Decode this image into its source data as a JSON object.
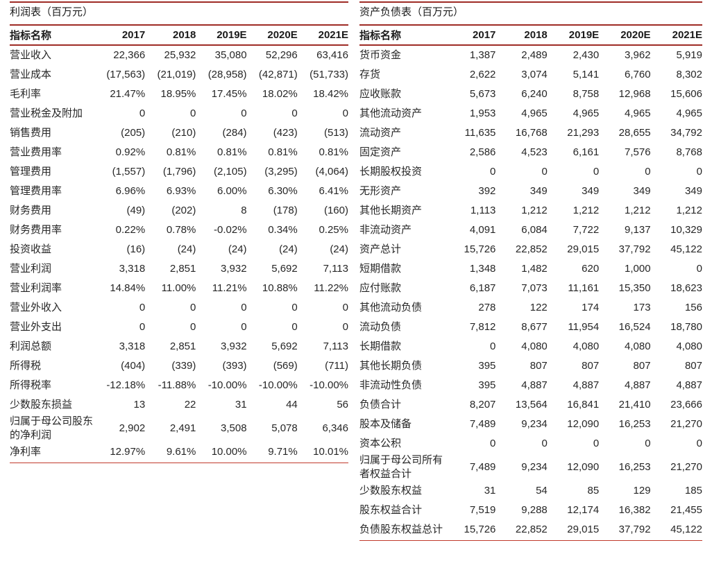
{
  "colors": {
    "rule_heavy": "#9e2b25",
    "rule_bottom": "#c0392b",
    "text": "#262626"
  },
  "tables": [
    {
      "id": "income-statement",
      "title": "利润表（百万元）",
      "columns": [
        "指标名称",
        "2017",
        "2018",
        "2019E",
        "2020E",
        "2021E"
      ],
      "rows": [
        [
          "营业收入",
          "22,366",
          "25,932",
          "35,080",
          "52,296",
          "63,416"
        ],
        [
          "营业成本",
          "(17,563)",
          "(21,019)",
          "(28,958)",
          "(42,871)",
          "(51,733)"
        ],
        [
          "毛利率",
          "21.47%",
          "18.95%",
          "17.45%",
          "18.02%",
          "18.42%"
        ],
        [
          "营业税金及附加",
          "0",
          "0",
          "0",
          "0",
          "0"
        ],
        [
          "销售费用",
          "(205)",
          "(210)",
          "(284)",
          "(423)",
          "(513)"
        ],
        [
          "营业费用率",
          "0.92%",
          "0.81%",
          "0.81%",
          "0.81%",
          "0.81%"
        ],
        [
          "管理费用",
          "(1,557)",
          "(1,796)",
          "(2,105)",
          "(3,295)",
          "(4,064)"
        ],
        [
          "管理费用率",
          "6.96%",
          "6.93%",
          "6.00%",
          "6.30%",
          "6.41%"
        ],
        [
          "财务费用",
          "(49)",
          "(202)",
          "8",
          "(178)",
          "(160)"
        ],
        [
          "财务费用率",
          "0.22%",
          "0.78%",
          "-0.02%",
          "0.34%",
          "0.25%"
        ],
        [
          "投资收益",
          "(16)",
          "(24)",
          "(24)",
          "(24)",
          "(24)"
        ],
        [
          "营业利润",
          "3,318",
          "2,851",
          "3,932",
          "5,692",
          "7,113"
        ],
        [
          "营业利润率",
          "14.84%",
          "11.00%",
          "11.21%",
          "10.88%",
          "11.22%"
        ],
        [
          "营业外收入",
          "0",
          "0",
          "0",
          "0",
          "0"
        ],
        [
          "营业外支出",
          "0",
          "0",
          "0",
          "0",
          "0"
        ],
        [
          "利润总额",
          "3,318",
          "2,851",
          "3,932",
          "5,692",
          "7,113"
        ],
        [
          "所得税",
          "(404)",
          "(339)",
          "(393)",
          "(569)",
          "(711)"
        ],
        [
          "所得税率",
          "-12.18%",
          "-11.88%",
          "-10.00%",
          "-10.00%",
          "-10.00%"
        ],
        [
          "少数股东损益",
          "13",
          "22",
          "31",
          "44",
          "56"
        ],
        [
          "归属于母公司股东的净利润",
          "2,902",
          "2,491",
          "3,508",
          "5,078",
          "6,346"
        ],
        [
          "净利率",
          "12.97%",
          "9.61%",
          "10.00%",
          "9.71%",
          "10.01%"
        ]
      ]
    },
    {
      "id": "balance-sheet",
      "title": "资产负债表（百万元）",
      "columns": [
        "指标名称",
        "2017",
        "2018",
        "2019E",
        "2020E",
        "2021E"
      ],
      "rows": [
        [
          "货币资金",
          "1,387",
          "2,489",
          "2,430",
          "3,962",
          "5,919"
        ],
        [
          "存货",
          "2,622",
          "3,074",
          "5,141",
          "6,760",
          "8,302"
        ],
        [
          "应收账款",
          "5,673",
          "6,240",
          "8,758",
          "12,968",
          "15,606"
        ],
        [
          "其他流动资产",
          "1,953",
          "4,965",
          "4,965",
          "4,965",
          "4,965"
        ],
        [
          "流动资产",
          "11,635",
          "16,768",
          "21,293",
          "28,655",
          "34,792"
        ],
        [
          "固定资产",
          "2,586",
          "4,523",
          "6,161",
          "7,576",
          "8,768"
        ],
        [
          "长期股权投资",
          "0",
          "0",
          "0",
          "0",
          "0"
        ],
        [
          "无形资产",
          "392",
          "349",
          "349",
          "349",
          "349"
        ],
        [
          "其他长期资产",
          "1,113",
          "1,212",
          "1,212",
          "1,212",
          "1,212"
        ],
        [
          "非流动资产",
          "4,091",
          "6,084",
          "7,722",
          "9,137",
          "10,329"
        ],
        [
          "资产总计",
          "15,726",
          "22,852",
          "29,015",
          "37,792",
          "45,122"
        ],
        [
          "短期借款",
          "1,348",
          "1,482",
          "620",
          "1,000",
          "0"
        ],
        [
          "应付账款",
          "6,187",
          "7,073",
          "11,161",
          "15,350",
          "18,623"
        ],
        [
          "其他流动负债",
          "278",
          "122",
          "174",
          "173",
          "156"
        ],
        [
          "流动负债",
          "7,812",
          "8,677",
          "11,954",
          "16,524",
          "18,780"
        ],
        [
          "长期借款",
          "0",
          "4,080",
          "4,080",
          "4,080",
          "4,080"
        ],
        [
          "其他长期负债",
          "395",
          "807",
          "807",
          "807",
          "807"
        ],
        [
          "非流动性负债",
          "395",
          "4,887",
          "4,887",
          "4,887",
          "4,887"
        ],
        [
          "负债合计",
          "8,207",
          "13,564",
          "16,841",
          "21,410",
          "23,666"
        ],
        [
          "股本及储备",
          "7,489",
          "9,234",
          "12,090",
          "16,253",
          "21,270"
        ],
        [
          "资本公积",
          "0",
          "0",
          "0",
          "0",
          "0"
        ],
        [
          "归属于母公司所有者权益合计",
          "7,489",
          "9,234",
          "12,090",
          "16,253",
          "21,270"
        ],
        [
          "少数股东权益",
          "31",
          "54",
          "85",
          "129",
          "185"
        ],
        [
          "股东权益合计",
          "7,519",
          "9,288",
          "12,174",
          "16,382",
          "21,455"
        ],
        [
          "负债股东权益总计",
          "15,726",
          "22,852",
          "29,015",
          "37,792",
          "45,122"
        ]
      ]
    }
  ]
}
